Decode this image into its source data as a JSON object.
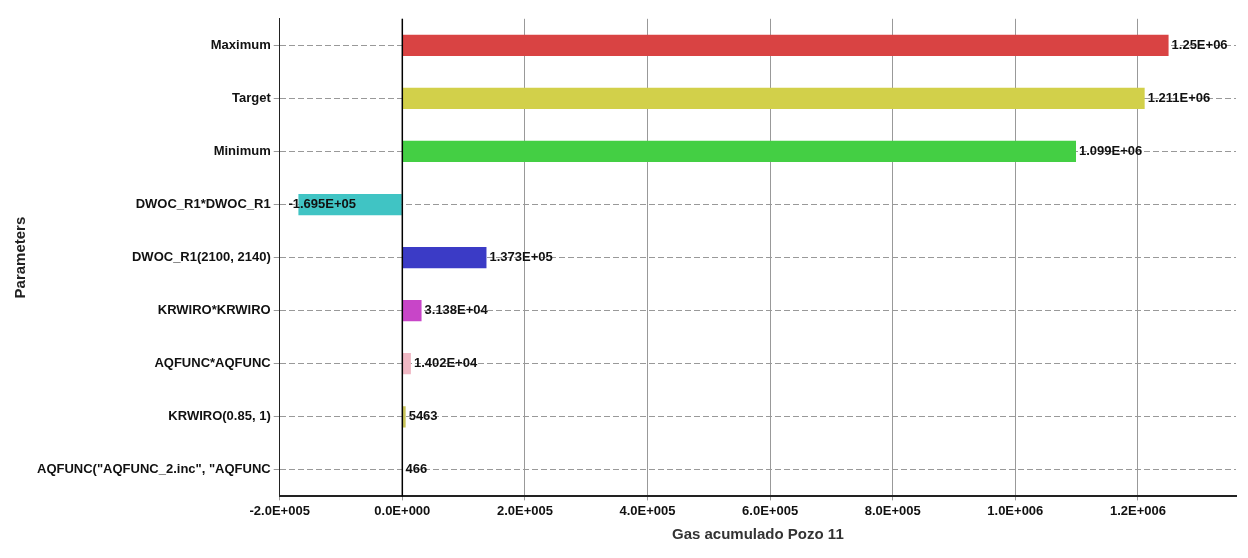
{
  "chart_data": {
    "type": "bar",
    "orientation": "horizontal",
    "xlabel": "Gas acumulado Pozo 11",
    "ylabel": "Parameters",
    "categories": [
      "Maximum",
      "Target",
      "Minimum",
      "DWOC_R1*DWOC_R1",
      "DWOC_R1(2100, 2140)",
      "KRWIRO*KRWIRO",
      "AQFUNC*AQFUNC",
      "KRWIRO(0.85, 1)",
      "AQFUNC(\"AQFUNC_2.inc\", \"AQFUNC"
    ],
    "values": [
      1250000,
      1211000,
      1099000,
      -169500,
      137300,
      31380,
      14020,
      5463,
      466
    ],
    "value_labels": [
      "1.25E+06",
      "1.211E+06",
      "1.099E+06",
      "-1.695E+05",
      "1.373E+05",
      "3.138E+04",
      "1.402E+04",
      "5463",
      "466"
    ],
    "colors": [
      "#d94343",
      "#d2d04a",
      "#44cf44",
      "#40c4c4",
      "#3b3bc6",
      "#c845c8",
      "#f0b8c4",
      "#c8c45a",
      "#9a9a9a"
    ],
    "xlim": [
      -200000,
      1360000
    ],
    "xticks": [
      {
        "value": -200000,
        "label": "-2.0E+005"
      },
      {
        "value": 0,
        "label": "0.0E+000"
      },
      {
        "value": 200000,
        "label": "2.0E+005"
      },
      {
        "value": 400000,
        "label": "4.0E+005"
      },
      {
        "value": 600000,
        "label": "6.0E+005"
      },
      {
        "value": 800000,
        "label": "8.0E+005"
      },
      {
        "value": 1000000,
        "label": "1.0E+006"
      },
      {
        "value": 1200000,
        "label": "1.2E+006"
      }
    ],
    "ref_lines": [
      {
        "axis": "x",
        "value": 0,
        "color": "#000000"
      }
    ],
    "grid": true,
    "legend": false
  }
}
